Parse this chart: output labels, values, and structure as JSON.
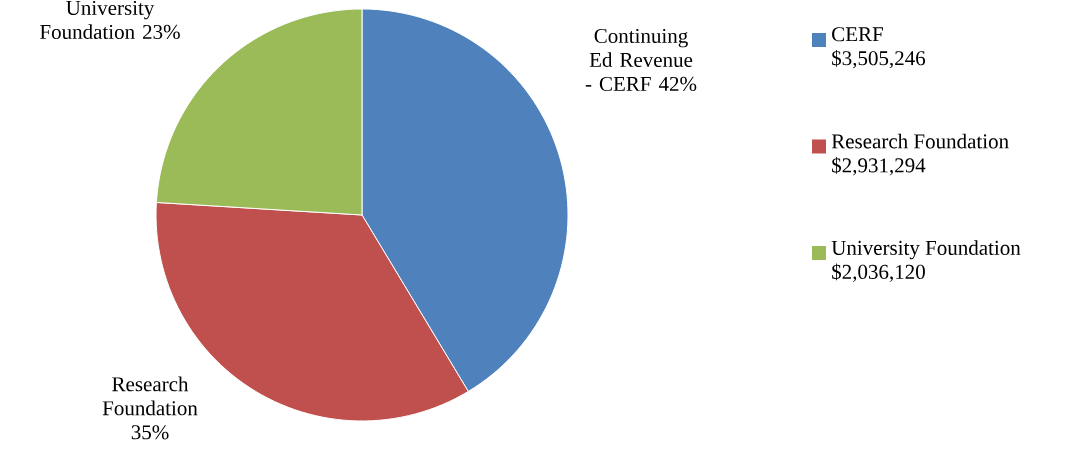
{
  "chart_data": {
    "type": "pie",
    "categories": [
      "CERF",
      "Research Foundation",
      "University Foundation"
    ],
    "values": [
      3505246,
      2931294,
      2036120
    ],
    "value_labels": [
      "$3,505,246",
      "$2,931,294",
      "$2,036,120"
    ],
    "colors": [
      "#4f81bd",
      "#c0504d",
      "#9bbb59"
    ],
    "legend": "right",
    "annotations": [
      "Continuing Ed Revenue - CERF 42%",
      "Research Foundation 35%",
      "University Foundation 23%"
    ]
  }
}
